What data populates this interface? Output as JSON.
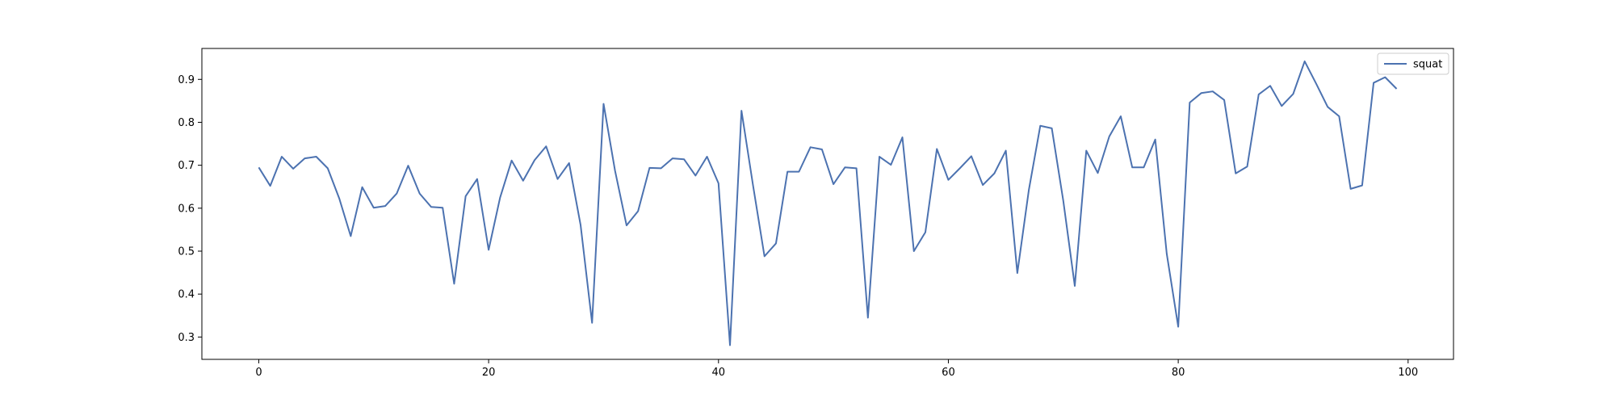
{
  "chart_data": {
    "type": "line",
    "title": "",
    "xlabel": "",
    "ylabel": "",
    "xlim": [
      -4.95,
      103.95
    ],
    "ylim": [
      0.248,
      0.972
    ],
    "xticks": [
      0,
      20,
      40,
      60,
      80,
      100
    ],
    "yticks": [
      0.3,
      0.4,
      0.5,
      0.6,
      0.7,
      0.8,
      0.9
    ],
    "grid": false,
    "legend": "top-right",
    "series": [
      {
        "name": "squat",
        "color": "#4c72b0",
        "x": [
          0,
          1,
          2,
          3,
          4,
          5,
          6,
          7,
          8,
          9,
          10,
          11,
          12,
          13,
          14,
          15,
          16,
          17,
          18,
          19,
          20,
          21,
          22,
          23,
          24,
          25,
          26,
          27,
          28,
          29,
          30,
          31,
          32,
          33,
          34,
          35,
          36,
          37,
          38,
          39,
          40,
          41,
          42,
          43,
          44,
          45,
          46,
          47,
          48,
          49,
          50,
          51,
          52,
          53,
          54,
          55,
          56,
          57,
          58,
          59,
          60,
          61,
          62,
          63,
          64,
          65,
          66,
          67,
          68,
          69,
          70,
          71,
          72,
          73,
          74,
          75,
          76,
          77,
          78,
          79,
          80,
          81,
          82,
          83,
          84,
          85,
          86,
          87,
          88,
          89,
          90,
          91,
          92,
          93,
          94,
          95,
          96,
          97,
          98,
          99
        ],
        "values": [
          0.695,
          0.652,
          0.72,
          0.692,
          0.716,
          0.72,
          0.693,
          0.623,
          0.535,
          0.649,
          0.601,
          0.605,
          0.634,
          0.699,
          0.634,
          0.603,
          0.601,
          0.424,
          0.628,
          0.668,
          0.503,
          0.625,
          0.711,
          0.664,
          0.712,
          0.744,
          0.668,
          0.705,
          0.561,
          0.333,
          0.843,
          0.687,
          0.56,
          0.593,
          0.694,
          0.693,
          0.716,
          0.714,
          0.676,
          0.72,
          0.658,
          0.281,
          0.827,
          0.654,
          0.488,
          0.518,
          0.685,
          0.685,
          0.742,
          0.737,
          0.656,
          0.695,
          0.693,
          0.345,
          0.72,
          0.701,
          0.765,
          0.5,
          0.544,
          0.738,
          0.666,
          0.693,
          0.721,
          0.654,
          0.681,
          0.734,
          0.449,
          0.642,
          0.792,
          0.786,
          0.617,
          0.419,
          0.734,
          0.682,
          0.767,
          0.814,
          0.695,
          0.695,
          0.76,
          0.494,
          0.324,
          0.846,
          0.868,
          0.872,
          0.852,
          0.681,
          0.697,
          0.865,
          0.885,
          0.838,
          0.866,
          0.942,
          0.89,
          0.836,
          0.814,
          0.645,
          0.653,
          0.892,
          0.905,
          0.878
        ]
      }
    ]
  }
}
